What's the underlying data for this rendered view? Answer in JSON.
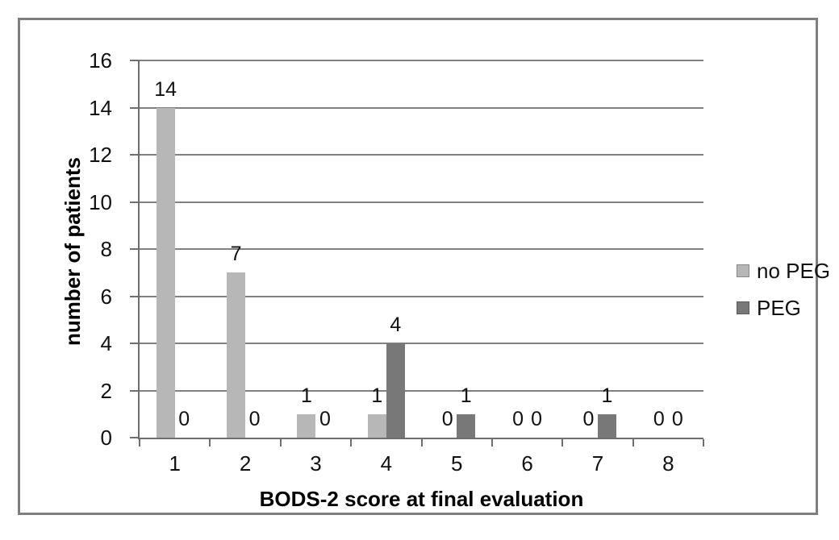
{
  "chart_data": {
    "type": "bar",
    "categories": [
      "1",
      "2",
      "3",
      "4",
      "5",
      "6",
      "7",
      "8"
    ],
    "series": [
      {
        "name": "no PEG",
        "color": "#b7b7b7",
        "values": [
          14,
          7,
          1,
          1,
          0,
          0,
          0,
          0
        ]
      },
      {
        "name": "PEG",
        "color": "#787878",
        "values": [
          0,
          0,
          0,
          4,
          1,
          0,
          1,
          0
        ]
      }
    ],
    "title": "",
    "xlabel": "BODS-2 score at final evaluation",
    "ylabel": "number of patients",
    "ylim": [
      0,
      16
    ],
    "ytick_step": 2,
    "ytick_labels": [
      "0",
      "2",
      "4",
      "6",
      "8",
      "10",
      "12",
      "14",
      "16"
    ],
    "grid": true,
    "data_labels": true,
    "legend_position": "right",
    "colors": {
      "gridline": "#808080",
      "axis": "#6e6e6e",
      "text": "#111111",
      "figure_border": "#7e7e7e",
      "background": "#ffffff"
    }
  }
}
